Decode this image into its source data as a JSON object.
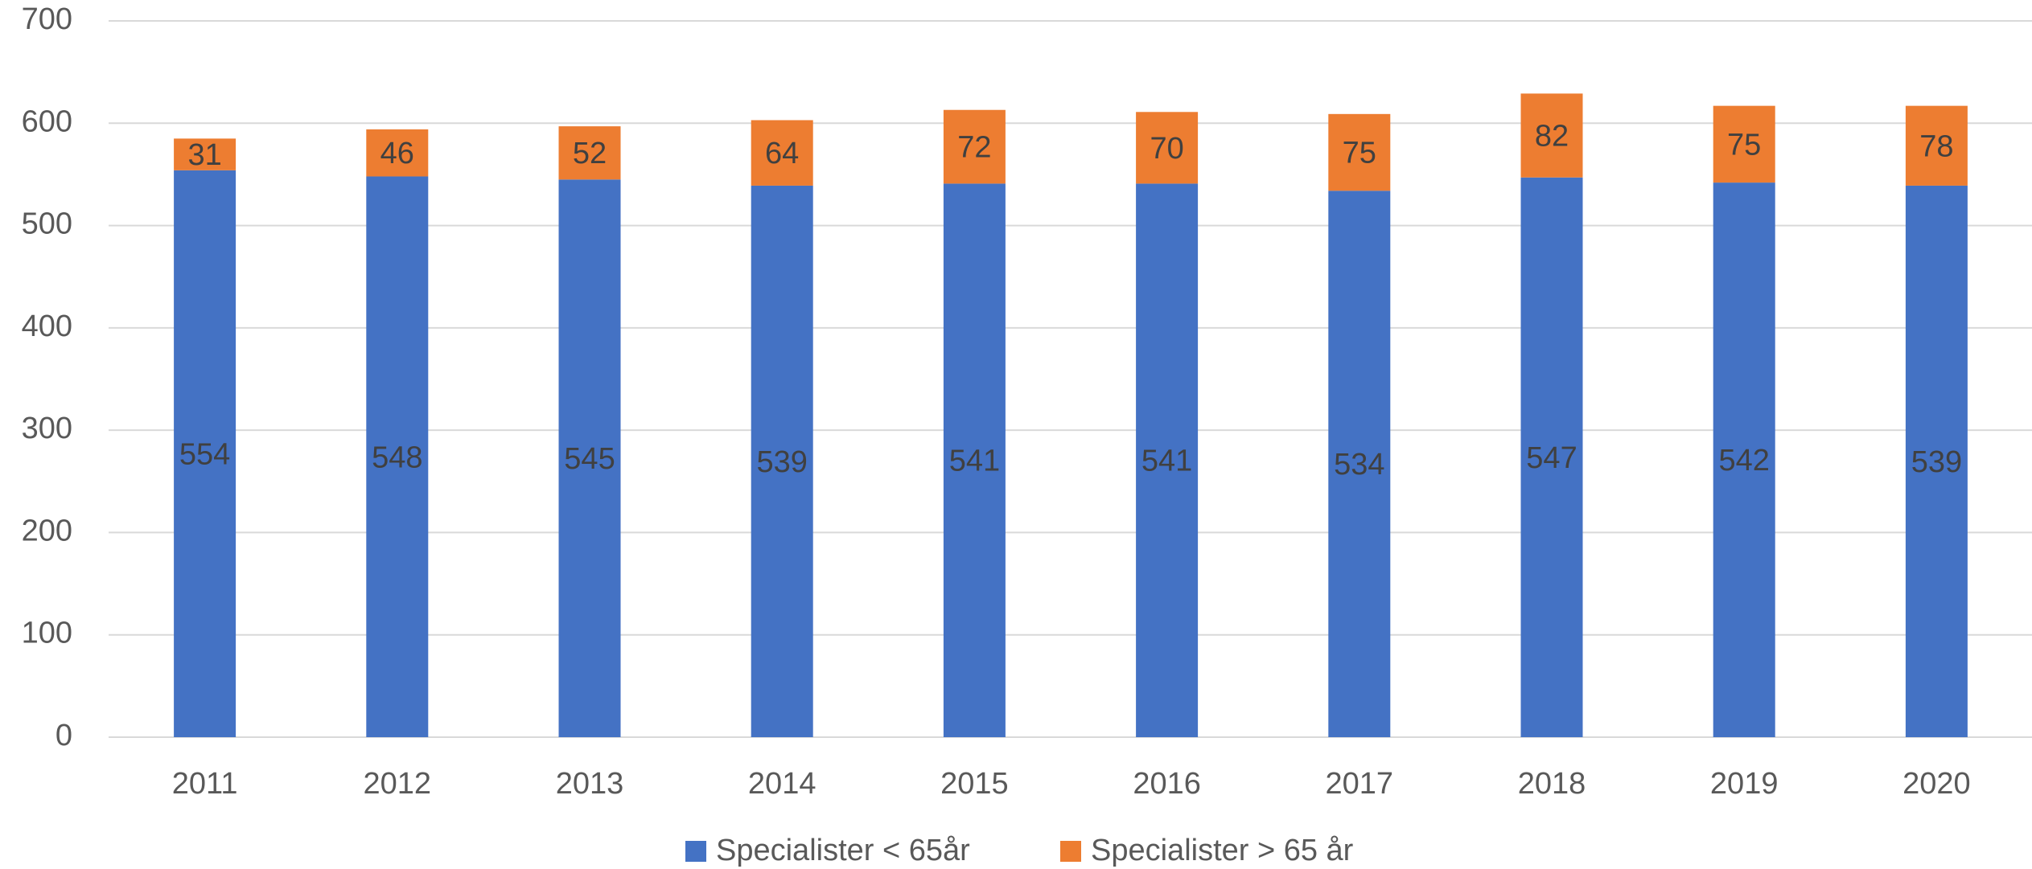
{
  "chart_data": {
    "type": "stacked_bar",
    "categories": [
      "2011",
      "2012",
      "2013",
      "2014",
      "2015",
      "2016",
      "2017",
      "2018",
      "2019",
      "2020"
    ],
    "series": [
      {
        "name": "Specialister < 65år",
        "color": "#4472c4",
        "values": [
          554,
          548,
          545,
          539,
          541,
          541,
          534,
          547,
          542,
          539
        ]
      },
      {
        "name": "Specialister > 65 år",
        "color": "#ed7d31",
        "values": [
          31,
          46,
          52,
          64,
          72,
          70,
          75,
          82,
          75,
          78
        ]
      }
    ],
    "ylim": [
      0,
      700
    ],
    "yticks": [
      0,
      100,
      200,
      300,
      400,
      500,
      600,
      700
    ],
    "grid": true,
    "legend": "bottom"
  }
}
